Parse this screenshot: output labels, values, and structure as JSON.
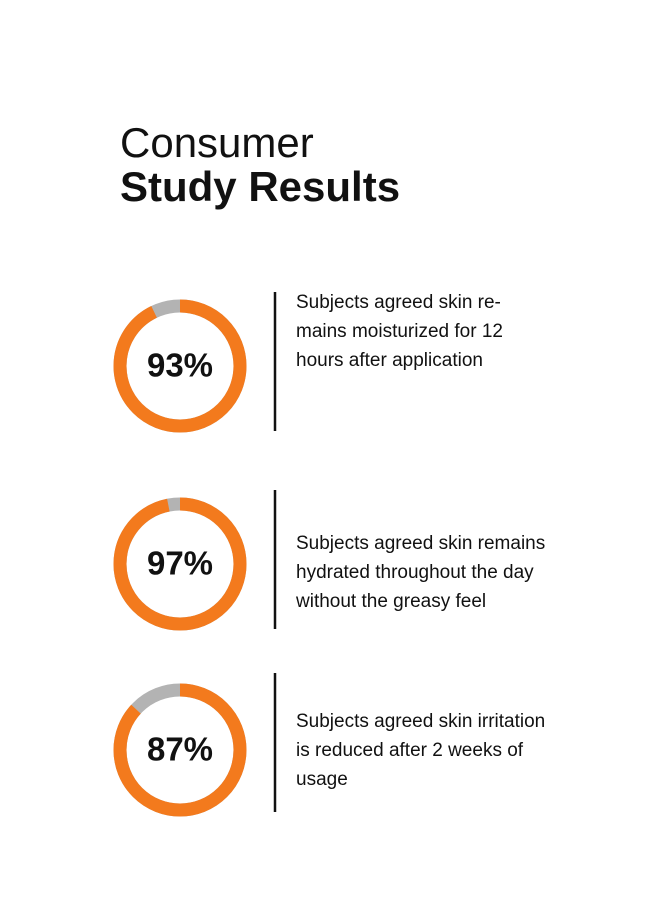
{
  "header": {
    "title_light": "Consumer",
    "title_bold": "Study Results"
  },
  "stats": [
    {
      "value": 93,
      "value_label": "93%",
      "lines": [
        "Subjects agreed skin re-",
        "mains moisturized for 12",
        "hours after application"
      ]
    },
    {
      "value": 97,
      "value_label": "97%",
      "lines": [
        "Subjects agreed skin remains",
        "hydrated throughout the day",
        "without the greasy feel"
      ]
    },
    {
      "value": 87,
      "value_label": "87%",
      "lines": [
        "Subjects agreed skin irritation",
        "is reduced after 2 weeks of",
        "usage"
      ]
    }
  ],
  "value_max": 100,
  "ring_color": "#f37a1d",
  "track_color": "#b3b3b3"
}
